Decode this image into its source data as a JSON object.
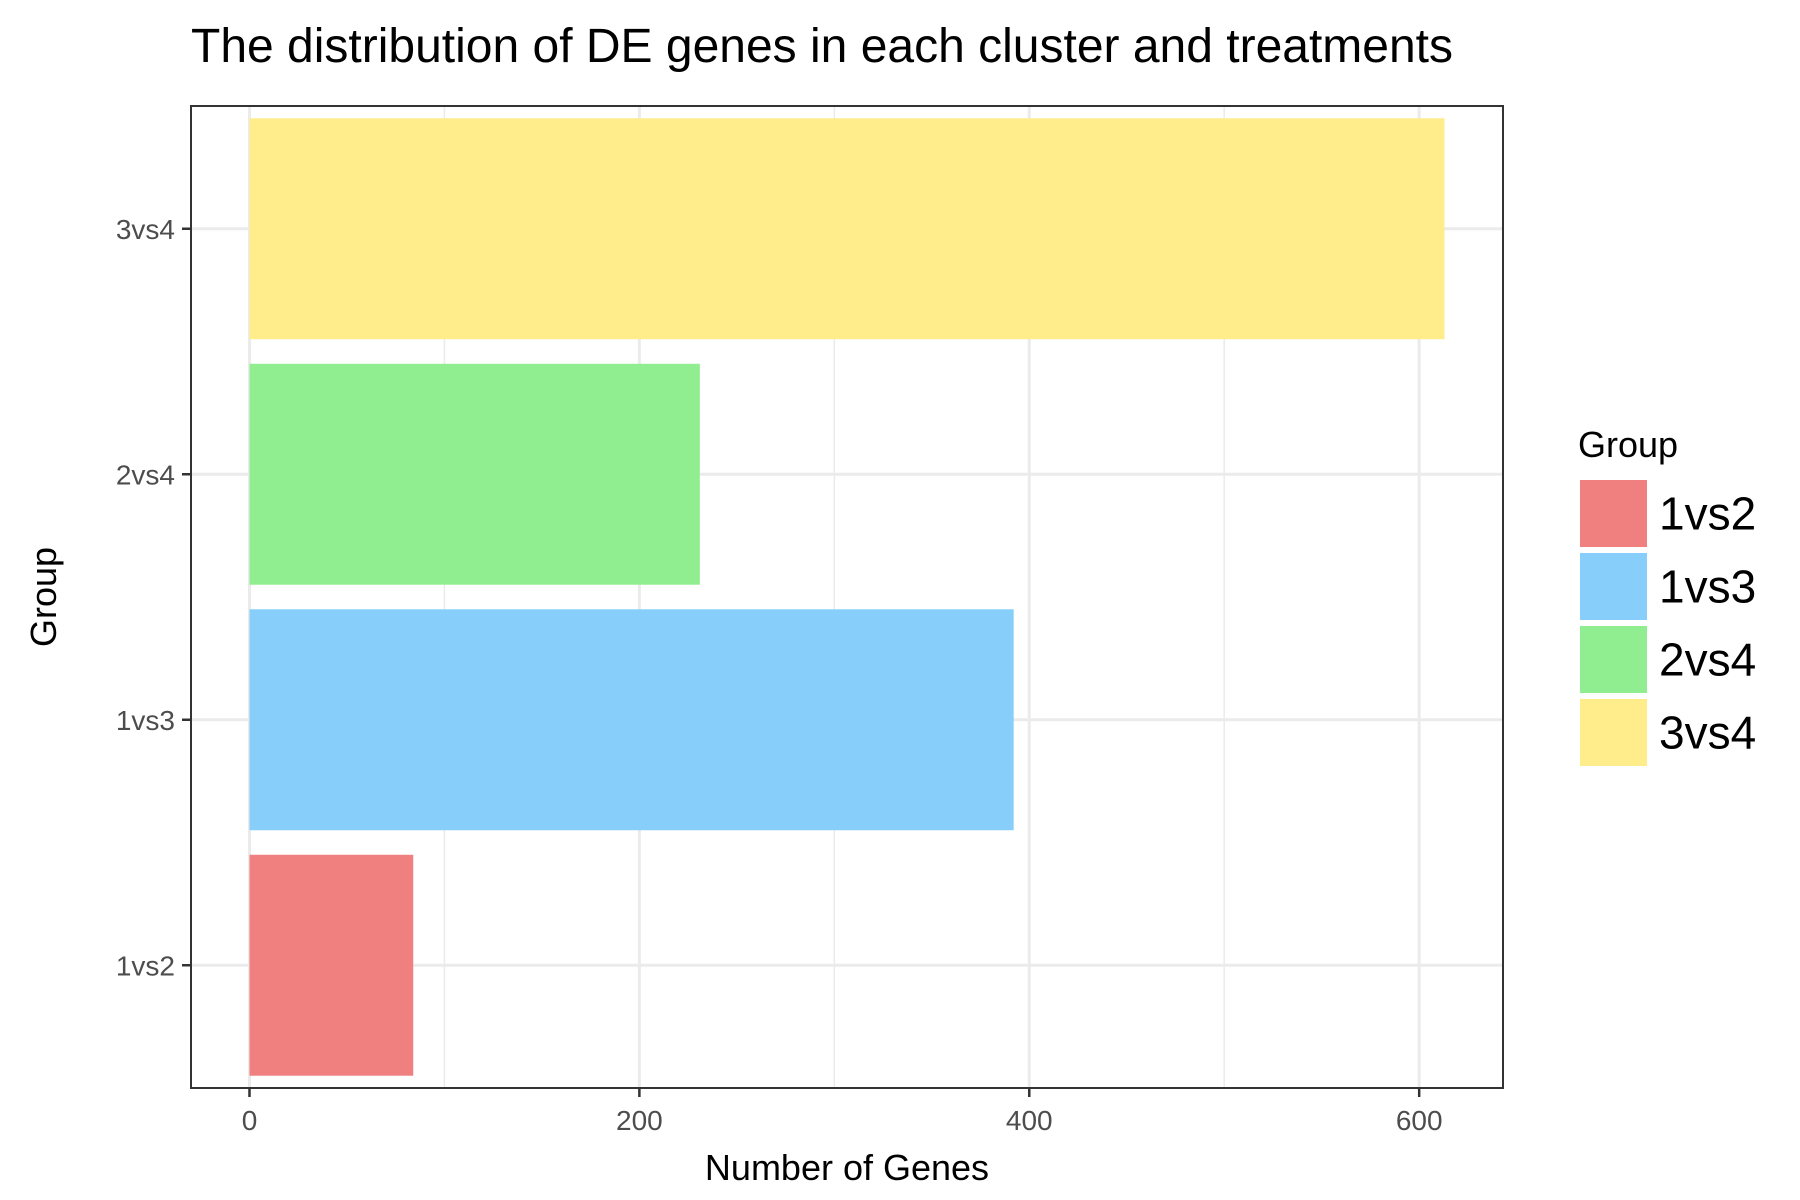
{
  "chart_data": {
    "type": "bar",
    "orientation": "horizontal",
    "title": "The distribution of DE genes in each cluster and treatments",
    "xlabel": "Number of Genes",
    "ylabel": "Group",
    "categories": [
      "1vs2",
      "1vs3",
      "2vs4",
      "3vs4"
    ],
    "values": [
      84,
      392,
      231,
      613
    ],
    "colors": [
      "#F08080",
      "#87CEFA",
      "#90EE90",
      "#FFEC8B"
    ],
    "xlim": [
      -30,
      643
    ],
    "xticks": [
      0,
      200,
      400,
      600
    ],
    "xtick_labels": [
      "0",
      "200",
      "400",
      "600"
    ],
    "grid": true,
    "legend": {
      "title": "Group",
      "position": "right",
      "entries": [
        "1vs2",
        "1vs3",
        "2vs4",
        "3vs4"
      ]
    }
  }
}
